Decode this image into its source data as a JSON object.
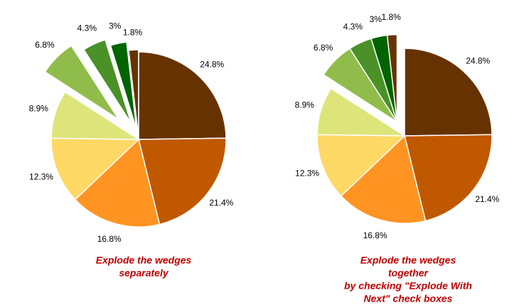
{
  "chart_data": [
    {
      "type": "pie",
      "title": [
        "Explode  the wedges",
        "separately"
      ],
      "categories": [
        null,
        null,
        null,
        null,
        null,
        null,
        null,
        null,
        null
      ],
      "values": [
        24.8,
        21.4,
        16.8,
        12.3,
        8.9,
        6.8,
        4.3,
        3,
        1.8
      ],
      "value_labels": [
        "24.8%",
        "21.4%",
        "16.8%",
        "12.3%",
        "8.9%",
        "6.8%",
        "4.3%",
        "3%",
        "1.8%"
      ],
      "colors": [
        "#663300",
        "#c05800",
        "#ff9422",
        "#ffd966",
        "#dde57a",
        "#8fbc4a",
        "#4a9128",
        "#006400",
        "#663300"
      ],
      "explode": [
        0,
        0,
        0,
        0,
        0,
        40,
        25,
        15,
        3
      ],
      "explode_together": false
    },
    {
      "type": "pie",
      "title": [
        "Explode the wedges",
        "together",
        "by checking \"Explode With",
        "Next\" check boxes"
      ],
      "categories": [
        null,
        null,
        null,
        null,
        null,
        null,
        null,
        null,
        null
      ],
      "values": [
        24.8,
        21.4,
        16.8,
        12.3,
        8.9,
        6.8,
        4.3,
        3,
        1.8
      ],
      "value_labels": [
        "24.8%",
        "21.4%",
        "16.8%",
        "12.3%",
        "8.9%",
        "6.8%",
        "4.3%",
        "3%",
        "1.8%"
      ],
      "colors": [
        "#663300",
        "#c05800",
        "#ff9422",
        "#ffd966",
        "#dde57a",
        "#8fbc4a",
        "#4a9128",
        "#006400",
        "#663300"
      ],
      "explode": [
        0,
        0,
        0,
        0,
        0,
        22,
        22,
        22,
        22
      ],
      "explode_together": true
    }
  ]
}
